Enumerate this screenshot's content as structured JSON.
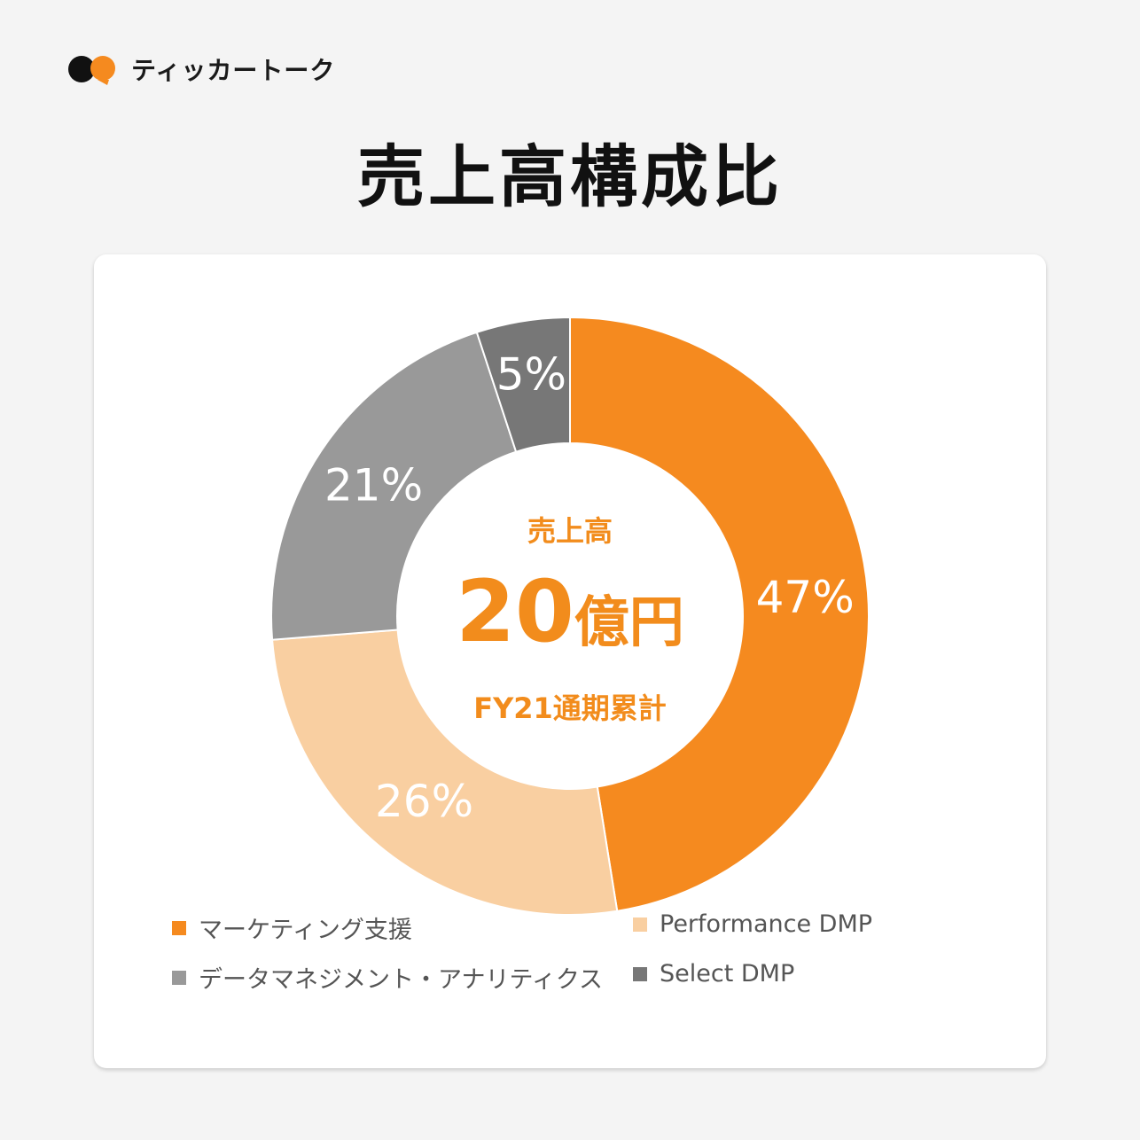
{
  "brand": {
    "name": "ティッカートーク"
  },
  "title": "売上高構成比",
  "center": {
    "label": "売上高",
    "amount": "20",
    "unit": "億円",
    "period": "FY21通期累計"
  },
  "chart_data": {
    "type": "pie",
    "donut": true,
    "categories": [
      "マーケティング支援",
      "Performance DMP",
      "データマネジメント・アナリティクス",
      "Select DMP"
    ],
    "values": [
      47,
      26,
      21,
      5
    ],
    "value_labels": [
      "47%",
      "26%",
      "21%",
      "5%"
    ],
    "colors": [
      "#f58a1f",
      "#f9cfa1",
      "#999999",
      "#777777"
    ],
    "legend": "bottom"
  }
}
